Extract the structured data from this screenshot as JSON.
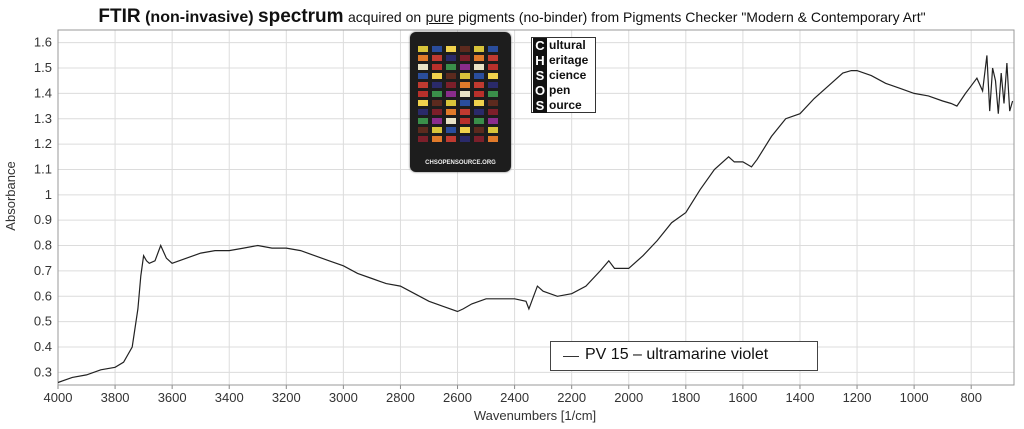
{
  "title": {
    "main": "FTIR",
    "qualifier": "(non-invasive)",
    "word": "spectrum",
    "pre": "acquired on",
    "underlined": "pure",
    "post": "pigments (no-binder) from Pigments Checker \"Modern & Contemporary Art\""
  },
  "card": {
    "footer": "CHSOPENSOURCE.ORG"
  },
  "logo": {
    "rows": [
      {
        "letter": "C",
        "rest": "ultural"
      },
      {
        "letter": "H",
        "rest": "eritage"
      },
      {
        "letter": "S",
        "rest": "cience"
      },
      {
        "letter": "O",
        "rest": "pen"
      },
      {
        "letter": "S",
        "rest": "ource"
      }
    ]
  },
  "legend": {
    "label": "PV 15 – ultramarine violet",
    "color": "#333333"
  },
  "chart_data": {
    "type": "line",
    "xlabel": "Wavenumbers [1/cm]",
    "ylabel": "Absorbance",
    "xlim": [
      4000,
      650
    ],
    "ylim": [
      0.25,
      1.65
    ],
    "x_reversed": true,
    "grid": true,
    "legend_position": "bottom-center",
    "x_ticks": [
      4000,
      3800,
      3600,
      3400,
      3200,
      3000,
      2800,
      2600,
      2400,
      2200,
      2000,
      1800,
      1600,
      1400,
      1200,
      1000,
      800
    ],
    "x_tick_labels": [
      "4000",
      "3800",
      "3600",
      "3400",
      "3200",
      "3000",
      "2800",
      "2600",
      "2400",
      "2200",
      "2000",
      "1800",
      "1600",
      "1400",
      "1200",
      "1000",
      "800"
    ],
    "y_ticks": [
      0.3,
      0.4,
      0.5,
      0.6,
      0.7,
      0.8,
      0.9,
      1.0,
      1.1,
      1.2,
      1.3,
      1.4,
      1.5,
      1.6
    ],
    "y_tick_labels": [
      "0.3",
      "0.4",
      "0.5",
      "0.6",
      "0.7",
      "0.8",
      "0.9",
      "1",
      "1.1",
      "1.2",
      "1.3",
      "1.4",
      "1.5",
      "1.6"
    ],
    "series": [
      {
        "name": "PV 15 – ultramarine violet",
        "color": "#222222",
        "x": [
          4000,
          3950,
          3900,
          3850,
          3800,
          3770,
          3740,
          3720,
          3710,
          3700,
          3690,
          3680,
          3660,
          3640,
          3620,
          3600,
          3550,
          3500,
          3450,
          3400,
          3350,
          3300,
          3250,
          3200,
          3150,
          3100,
          3050,
          3000,
          2950,
          2900,
          2850,
          2800,
          2750,
          2700,
          2650,
          2600,
          2580,
          2550,
          2500,
          2450,
          2400,
          2360,
          2350,
          2340,
          2320,
          2300,
          2250,
          2200,
          2150,
          2100,
          2070,
          2050,
          2000,
          1950,
          1900,
          1850,
          1800,
          1750,
          1700,
          1650,
          1630,
          1600,
          1570,
          1550,
          1500,
          1450,
          1400,
          1350,
          1300,
          1250,
          1220,
          1200,
          1150,
          1100,
          1050,
          1000,
          950,
          900,
          870,
          850,
          820,
          800,
          780,
          760,
          745,
          735,
          725,
          715,
          705,
          695,
          685,
          675,
          665,
          655
        ],
        "y": [
          0.26,
          0.28,
          0.29,
          0.31,
          0.32,
          0.34,
          0.4,
          0.55,
          0.68,
          0.76,
          0.74,
          0.73,
          0.74,
          0.8,
          0.75,
          0.73,
          0.75,
          0.77,
          0.78,
          0.78,
          0.79,
          0.8,
          0.79,
          0.79,
          0.78,
          0.76,
          0.74,
          0.72,
          0.69,
          0.67,
          0.65,
          0.64,
          0.61,
          0.58,
          0.56,
          0.54,
          0.55,
          0.57,
          0.59,
          0.59,
          0.59,
          0.58,
          0.55,
          0.58,
          0.64,
          0.62,
          0.6,
          0.61,
          0.64,
          0.7,
          0.74,
          0.71,
          0.71,
          0.76,
          0.82,
          0.89,
          0.93,
          1.02,
          1.1,
          1.15,
          1.13,
          1.13,
          1.11,
          1.14,
          1.23,
          1.3,
          1.32,
          1.38,
          1.43,
          1.48,
          1.49,
          1.49,
          1.47,
          1.44,
          1.42,
          1.4,
          1.39,
          1.37,
          1.36,
          1.35,
          1.4,
          1.43,
          1.46,
          1.41,
          1.55,
          1.33,
          1.5,
          1.45,
          1.32,
          1.48,
          1.36,
          1.52,
          1.33,
          1.37
        ]
      }
    ]
  }
}
